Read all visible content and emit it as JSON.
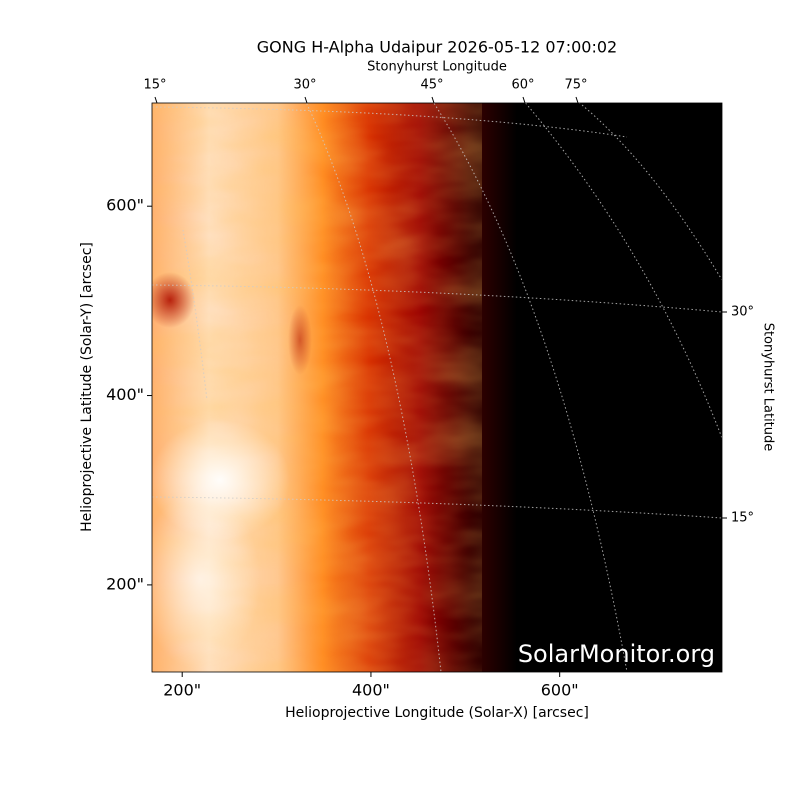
{
  "chart_data": {
    "type": "image",
    "title": "GONG H-Alpha Udaipur 2026-05-12 07:00:02",
    "xlabel": "Helioprojective Longitude (Solar-X) [arcsec]",
    "ylabel": "Helioprojective Latitude (Solar-Y) [arcsec]",
    "top_label": "Stonyhurst Longitude",
    "right_label": "Stonyhurst Latitude",
    "top_ticks": [
      "15°",
      "30°",
      "45°",
      "60°",
      "75°"
    ],
    "right_ticks": [
      "30°",
      "15°"
    ],
    "watermark": "SolarMonitor.org",
    "xlim": [
      168,
      772
    ],
    "ylim": [
      108,
      709
    ],
    "xticks": [
      {
        "value": 200,
        "label": "200\""
      },
      {
        "value": 400,
        "label": "400\""
      },
      {
        "value": 600,
        "label": "600\""
      }
    ],
    "yticks": [
      {
        "value": 200,
        "label": "200\""
      },
      {
        "value": 400,
        "label": "400\""
      },
      {
        "value": 600,
        "label": "600\""
      }
    ]
  }
}
